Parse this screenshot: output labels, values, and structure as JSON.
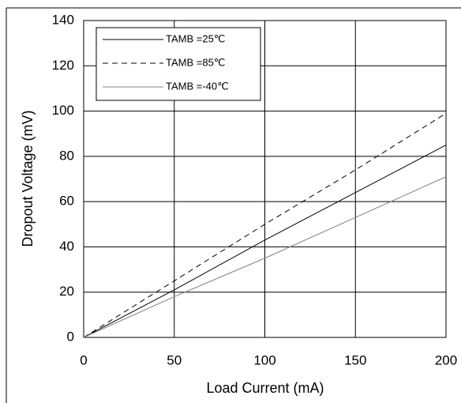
{
  "chart_data": {
    "type": "line",
    "xlabel": "Load Current (mA)",
    "ylabel": "Dropout Voltage (mV)",
    "x": [
      0,
      50,
      100,
      150,
      200
    ],
    "series": [
      {
        "name": "TAMB =25℃",
        "color": "#000000",
        "dash": false,
        "values": [
          0,
          21,
          43,
          64,
          85
        ]
      },
      {
        "name": "TAMB =85℃",
        "color": "#000000",
        "dash": true,
        "values": [
          0,
          25,
          50,
          74,
          99
        ]
      },
      {
        "name": "TAMB =-40℃",
        "color": "#808080",
        "dash": false,
        "values": [
          0,
          18,
          35,
          53,
          71
        ]
      }
    ],
    "xlim": [
      0,
      200
    ],
    "ylim": [
      0,
      140
    ],
    "xticks": [
      0,
      50,
      100,
      150,
      200
    ],
    "yticks": [
      0,
      20,
      40,
      60,
      80,
      100,
      120,
      140
    ],
    "grid": true,
    "legend": "upper-left"
  }
}
